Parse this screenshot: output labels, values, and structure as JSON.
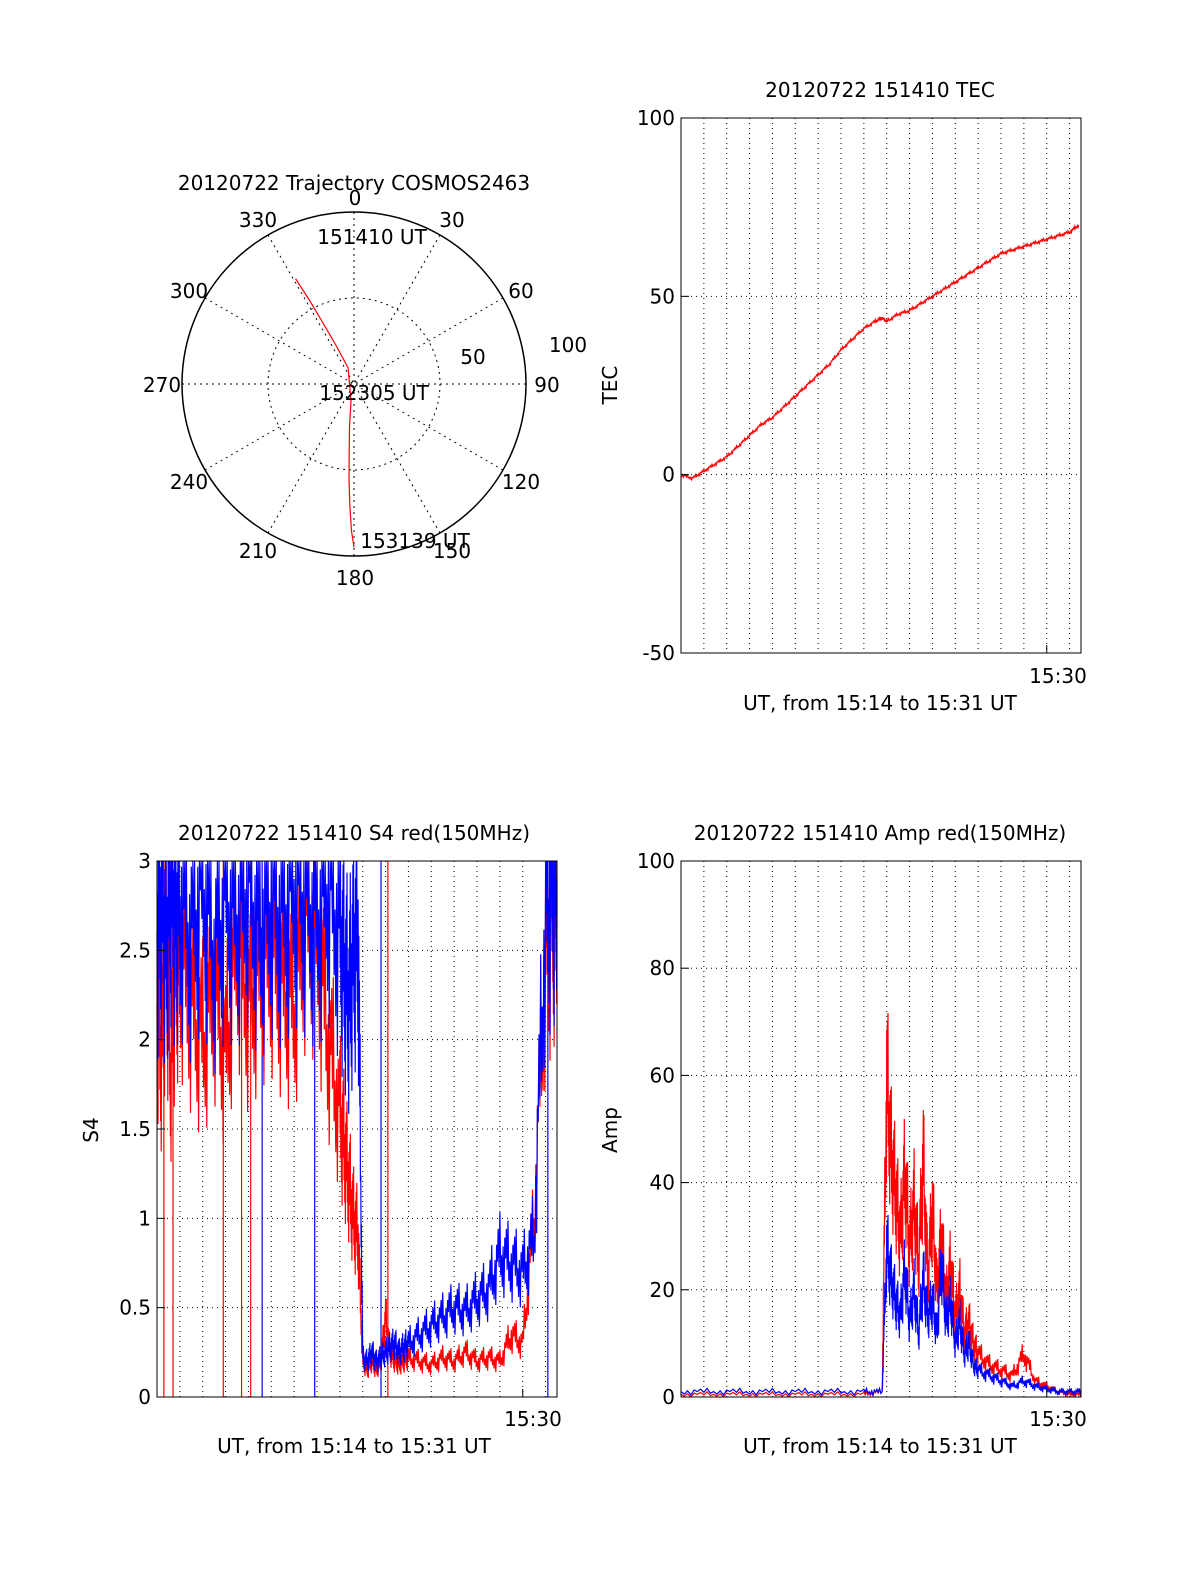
{
  "colors": {
    "red": "#ff0000",
    "blue": "#0000ff",
    "grid": "#000000",
    "axis": "#000000"
  },
  "chart_data": [
    {
      "id": "polar",
      "type": "scatter",
      "subtype": "polar-trajectory",
      "title": "20120722 Trajectory COSMOS2463",
      "azimuth_labels": [
        "0",
        "30",
        "60",
        "90",
        "120",
        "150",
        "180",
        "210",
        "240",
        "270",
        "300",
        "330"
      ],
      "radial_labels": [
        "50",
        "100"
      ],
      "radial_range": [
        0,
        100
      ],
      "annotations": [
        "151410 UT",
        "152305 UT",
        "153139 UT"
      ],
      "series": [
        {
          "color": "#ff0000",
          "points": [
            [
              331,
              70
            ],
            [
              332,
              55
            ],
            [
              333,
              40
            ],
            [
              335,
              25
            ],
            [
              340,
              10
            ],
            [
              190,
              10
            ],
            [
              186,
              25
            ],
            [
              184,
              40
            ],
            [
              183,
              55
            ],
            [
              182,
              70
            ],
            [
              181,
              85
            ],
            [
              180,
              95
            ]
          ]
        }
      ]
    },
    {
      "id": "tec",
      "type": "line",
      "title": "20120722 151410 TEC",
      "xlabel": "UT, from 15:14 to 15:31 UT",
      "ylabel": "TEC",
      "xlim": [
        0,
        17.5
      ],
      "ylim": [
        -50,
        100
      ],
      "yticks": [
        "-50",
        "0",
        "50",
        "100"
      ],
      "xtick_label": "15:30",
      "xtick_at": 16.0,
      "grid": true,
      "series": [
        {
          "color": "#ff0000",
          "x": [
            0,
            0.5,
            1,
            1.5,
            2,
            2.5,
            3,
            3.5,
            4,
            4.5,
            5,
            5.5,
            6,
            6.5,
            7,
            7.5,
            8,
            8.5,
            8.8,
            9,
            9.5,
            10,
            10.5,
            11,
            11.5,
            12,
            12.5,
            13,
            13.5,
            14,
            14.5,
            15,
            15.5,
            16,
            16.5,
            17,
            17.4
          ],
          "y": [
            0,
            -1,
            1,
            3,
            5,
            8,
            11,
            14,
            16,
            19,
            22,
            25,
            28,
            31,
            35,
            38,
            41,
            43,
            44,
            43,
            45,
            46,
            48,
            50,
            52,
            54,
            56,
            58,
            60,
            62,
            63,
            64,
            65,
            66,
            67,
            68,
            70
          ]
        }
      ]
    },
    {
      "id": "s4",
      "type": "line",
      "title": "20120722 151410 S4 red(150MHz)",
      "xlabel": "UT, from 15:14 to 15:31 UT",
      "ylabel": "S4",
      "xlim": [
        0,
        17.5
      ],
      "ylim": [
        0,
        3
      ],
      "yticks": [
        "0",
        "0.5",
        "1",
        "1.5",
        "2",
        "2.5",
        "3"
      ],
      "xtick_label": "15:30",
      "xtick_at": 16.0,
      "grid": true,
      "series": [
        {
          "color": "#ff0000",
          "x": [
            0,
            0.2,
            0.4,
            0.6,
            0.8,
            1,
            1.5,
            2,
            2.5,
            3,
            3.5,
            4,
            4.5,
            5,
            5.5,
            6,
            6.5,
            7,
            7.5,
            8,
            8.2,
            8.4,
            8.6,
            8.8,
            9,
            9.2,
            9.4,
            9.6,
            9.8,
            10,
            10.2,
            10.4,
            10.6,
            10.8,
            11,
            11.5,
            12,
            12.5,
            13,
            13.5,
            14,
            14.5,
            15,
            15.5,
            16,
            16.5,
            17,
            17.3,
            17.5
          ],
          "y": [
            2.2,
            1.9,
            2.6,
            1.8,
            2.4,
            2.5,
            2.2,
            2.0,
            2.3,
            1.9,
            2.6,
            2.2,
            2.4,
            2.5,
            2.3,
            2.2,
            2.7,
            2.6,
            2.0,
            1.6,
            1.4,
            1.2,
            1.0,
            0.9,
            0.2,
            0.15,
            0.2,
            0.15,
            0.2,
            0.45,
            0.25,
            0.2,
            0.18,
            0.2,
            0.22,
            0.2,
            0.18,
            0.22,
            0.2,
            0.25,
            0.2,
            0.22,
            0.2,
            0.35,
            0.3,
            1.0,
            2.5,
            2.7,
            2.8
          ]
        },
        {
          "color": "#0000ff",
          "x": [
            0,
            0.2,
            0.4,
            0.6,
            0.8,
            1,
            1.5,
            2,
            2.5,
            3,
            3.5,
            4,
            4.5,
            5,
            5.5,
            6,
            6.5,
            7,
            7.5,
            8,
            8.2,
            8.4,
            8.6,
            8.8,
            9,
            9.2,
            9.4,
            9.6,
            9.8,
            10,
            10.2,
            10.4,
            10.6,
            10.8,
            11,
            11.5,
            12,
            12.5,
            13,
            13.5,
            14,
            14.5,
            15,
            15.5,
            16,
            16.5,
            17,
            17.3,
            17.5
          ],
          "y": [
            2.6,
            2.8,
            2.5,
            2.9,
            2.7,
            2.8,
            2.6,
            2.9,
            2.5,
            2.8,
            2.7,
            2.9,
            2.6,
            2.8,
            2.7,
            2.9,
            2.8,
            2.7,
            2.9,
            2.6,
            2.4,
            2.2,
            2.5,
            2.6,
            0.22,
            0.2,
            0.25,
            0.2,
            0.22,
            0.25,
            0.28,
            0.3,
            0.25,
            0.28,
            0.3,
            0.35,
            0.4,
            0.45,
            0.5,
            0.48,
            0.55,
            0.6,
            0.8,
            0.75,
            0.7,
            0.9,
            2.7,
            2.9,
            2.9
          ]
        }
      ],
      "spikes": [
        {
          "color": "#ff0000",
          "x": [
            0.3,
            0.7,
            2.9,
            3.7,
            4.1,
            10.1
          ]
        },
        {
          "color": "#0000ff",
          "x": [
            4.6,
            6.9,
            9.8,
            17.1
          ]
        }
      ]
    },
    {
      "id": "amp",
      "type": "line",
      "title": "20120722 151410 Amp red(150MHz)",
      "xlabel": "UT, from 15:14 to 15:31 UT",
      "ylabel": "Amp",
      "xlim": [
        0,
        17.5
      ],
      "ylim": [
        0,
        100
      ],
      "yticks": [
        "0",
        "20",
        "40",
        "60",
        "80",
        "100"
      ],
      "xtick_label": "15:30",
      "xtick_at": 16.0,
      "grid": true,
      "series": [
        {
          "color": "#ff0000",
          "x": [
            0,
            2,
            4,
            6,
            8,
            8.8,
            9.0,
            9.2,
            9.4,
            9.6,
            9.8,
            10.0,
            10.2,
            10.4,
            10.6,
            10.8,
            11.0,
            11.2,
            11.4,
            11.6,
            11.8,
            12.0,
            12.2,
            12.4,
            12.6,
            12.8,
            13.0,
            13.5,
            14.0,
            14.5,
            15.0,
            15.5,
            16.0,
            16.5,
            17.0,
            17.5
          ],
          "y": [
            0.5,
            0.5,
            0.5,
            0.5,
            0.5,
            1,
            60,
            45,
            38,
            30,
            42,
            28,
            36,
            25,
            44,
            22,
            35,
            20,
            30,
            18,
            25,
            15,
            20,
            12,
            14,
            10,
            8,
            6,
            5,
            4,
            8,
            3,
            2,
            1,
            0.5,
            0.5
          ]
        },
        {
          "color": "#0000ff",
          "x": [
            0,
            2,
            4,
            6,
            8,
            8.8,
            9.0,
            9.2,
            9.4,
            9.6,
            9.8,
            10.0,
            10.2,
            10.4,
            10.6,
            10.8,
            11.0,
            11.2,
            11.4,
            11.6,
            11.8,
            12.0,
            12.2,
            12.4,
            12.6,
            12.8,
            13.0,
            13.5,
            14.0,
            14.5,
            15.0,
            15.5,
            16.0,
            16.5,
            17.0,
            17.5
          ],
          "y": [
            1,
            1,
            1,
            1,
            1,
            1,
            28,
            22,
            18,
            15,
            24,
            14,
            20,
            12,
            22,
            15,
            18,
            12,
            25,
            14,
            18,
            10,
            14,
            8,
            10,
            6,
            5,
            4,
            3,
            2,
            3,
            2,
            1.5,
            1,
            1,
            1
          ]
        }
      ]
    }
  ]
}
